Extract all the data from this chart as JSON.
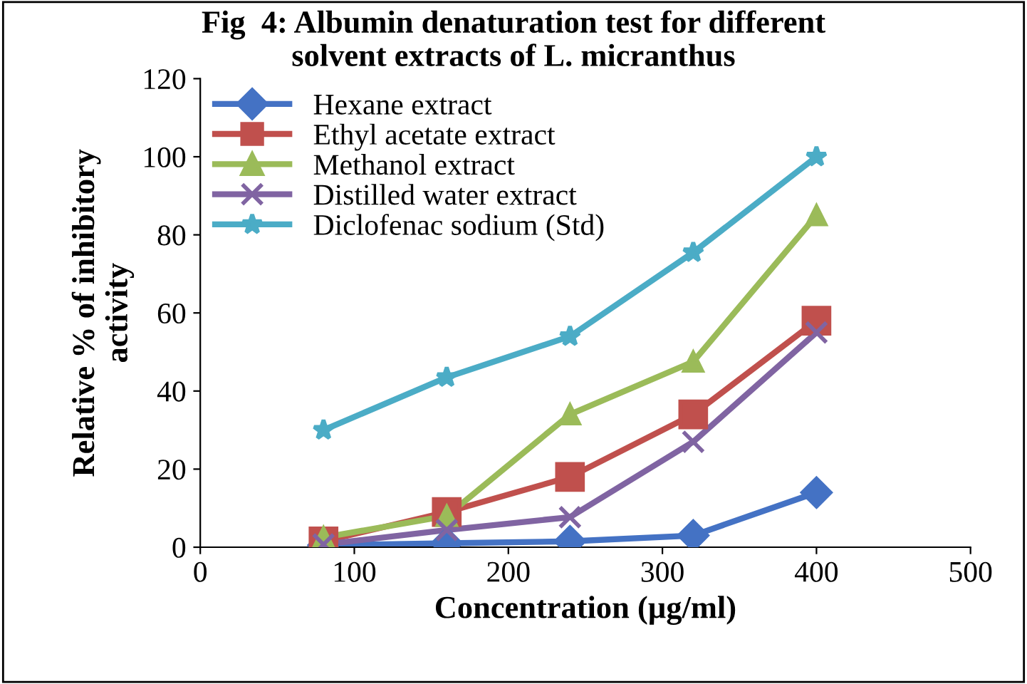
{
  "chart_data": {
    "type": "line",
    "title": "Fig  4: Albumin denaturation test for different\nsolvent extracts of L. micranthus",
    "xlabel": "Concentration (µg/ml)",
    "ylabel": "Relative % of inhibitory\nactivity",
    "x": [
      80,
      160,
      240,
      320,
      400
    ],
    "series": [
      {
        "name": "Hexane extract",
        "color": "#4472c4",
        "marker": "diamond",
        "values": [
          0.5,
          1,
          1.5,
          3,
          14
        ]
      },
      {
        "name": "Ethyl acetate extract",
        "color": "#c0504d",
        "marker": "square",
        "values": [
          1.5,
          9,
          18,
          34,
          58
        ]
      },
      {
        "name": "Methanol extract",
        "color": "#9bbb59",
        "marker": "triangle",
        "values": [
          2.5,
          8,
          34,
          47.5,
          85
        ]
      },
      {
        "name": "Distilled water extract",
        "color": "#8064a2",
        "marker": "cross",
        "values": [
          0.7,
          4.4,
          7.7,
          27,
          55
        ]
      },
      {
        "name": "Diclofenac sodium (Std)",
        "color": "#4bacc6",
        "marker": "star",
        "values": [
          30,
          43.5,
          54,
          75.5,
          100
        ]
      }
    ],
    "xlim": [
      0,
      500
    ],
    "xticks": [
      0,
      100,
      200,
      300,
      400,
      500
    ],
    "ylim": [
      0,
      120
    ],
    "yticks": [
      0,
      20,
      40,
      60,
      80,
      100,
      120
    ],
    "grid": false,
    "legend": "top left",
    "line_style": "solid"
  }
}
